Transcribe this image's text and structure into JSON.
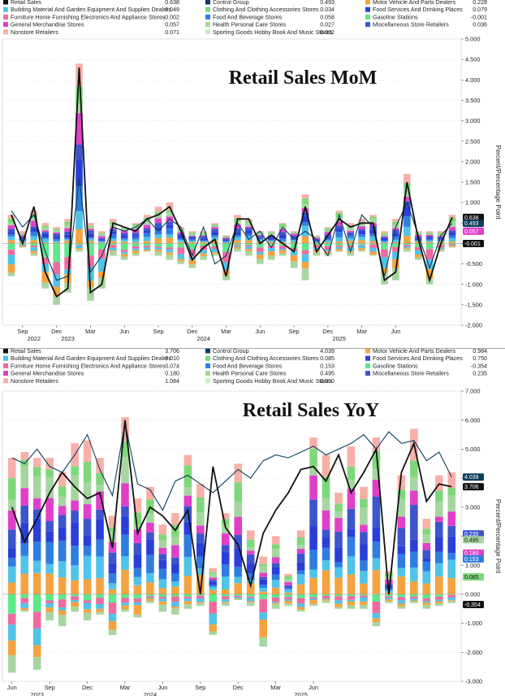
{
  "chart_data": [
    {
      "type": "bar",
      "title": "Retail Sales MoM",
      "ylabel": "Percent/Percentage Point",
      "ylim": [
        -2.0,
        5.0
      ],
      "yticks": [
        "5.000",
        "4.500",
        "4.000",
        "3.500",
        "3.000",
        "2.500",
        "2.000",
        "1.500",
        "1.000",
        "0.500",
        "0.000",
        "-0.500",
        "-1.000",
        "-1.500",
        "-2.000"
      ],
      "x_month_labels": [
        "Sep",
        "Dec",
        "Mar",
        "Jun",
        "Sep",
        "Dec",
        "Mar",
        "Jun",
        "Sep",
        "Dec",
        "Mar",
        "Jun"
      ],
      "x_year_labels": [
        "2022",
        "2023",
        "2024",
        "2025"
      ],
      "legend": [
        {
          "name": "Retail Sales",
          "value": "0.638",
          "color": "#111111"
        },
        {
          "name": "Control Group",
          "value": "0.493",
          "color": "#0b3d5c"
        },
        {
          "name": "Motor Vehicle And Parts Dealers",
          "value": "0.228",
          "color": "#f5a340"
        },
        {
          "name": "Building Material And Garden Equipment And Supplies Dealers",
          "value": "0.049",
          "color": "#4fc3e8"
        },
        {
          "name": "Clothing And Clothing Accessories Stores",
          "value": "0.034",
          "color": "#7ed87a"
        },
        {
          "name": "Food Services And Drinking Places",
          "value": "0.079",
          "color": "#2a3fd8"
        },
        {
          "name": "Furniture Home Furnishing Electronics And Appliance Stores",
          "value": "-0.002",
          "color": "#f06aa0"
        },
        {
          "name": "Food And Beverage Stores",
          "value": "0.058",
          "color": "#2f7de0"
        },
        {
          "name": "Gasoline Stations",
          "value": "-0.001",
          "color": "#5de88a"
        },
        {
          "name": "General Merchandise Stores",
          "value": "0.057",
          "color": "#e040c8"
        },
        {
          "name": "Health Personal Care Stores",
          "value": "0.027",
          "color": "#a6d6a0"
        },
        {
          "name": "Miscellaneous Store Retailers",
          "value": "0.036",
          "color": "#3d55cc"
        },
        {
          "name": "Nonstore Retailers",
          "value": "0.071",
          "color": "#f7b0a8"
        },
        {
          "name": "Sporting Goods Hobby Book And Music Stores",
          "value": "0.002",
          "color": "#c9eec0"
        }
      ],
      "retail_sales": [
        0.7,
        0.0,
        0.9,
        -0.7,
        -1.3,
        -1.1,
        4.3,
        -1.2,
        -1.0,
        0.5,
        0.4,
        0.3,
        0.6,
        0.7,
        0.9,
        0.3,
        -0.4,
        -0.1,
        0.1,
        -0.8,
        0.6,
        0.6,
        0.0,
        0.2,
        0.0,
        -0.2,
        0.9,
        -0.2,
        0.2,
        0.6,
        0.4,
        0.5,
        0.5,
        -0.9,
        -0.7,
        1.5,
        0.1,
        -0.9,
        0.0,
        0.638
      ],
      "control_group": [
        0.8,
        0.4,
        0.7,
        -0.2,
        -0.9,
        -0.8,
        1.6,
        -0.7,
        -0.3,
        0.4,
        0.3,
        0.4,
        0.6,
        0.3,
        0.6,
        0.4,
        -0.3,
        0.4,
        -0.5,
        -0.3,
        0.5,
        0.1,
        0.3,
        -0.1,
        0.4,
        0.1,
        0.3,
        0.1,
        -0.3,
        0.7,
        -0.2,
        0.7,
        0.4,
        -0.8,
        0.4,
        1.0,
        0.2,
        -0.6,
        0.2,
        0.493
      ],
      "yoy_positive_total": [
        4.7,
        4.9,
        4.7,
        4.7,
        4.2,
        5.2,
        5.3,
        4.7,
        2.7,
        6.1,
        3.3,
        3.7,
        2.4,
        2.8,
        4.8,
        3.8,
        0.9,
        2.8,
        4.5,
        2.2,
        1.3,
        2.0,
        0.7,
        2.2,
        5.4,
        4.8,
        3.5,
        5.1,
        3.7,
        5.4,
        0.8,
        4.1,
        5.7,
        2.6,
        4.1,
        4.2
      ],
      "yoy_negative_total": [
        -2.7,
        -0.6,
        -2.6,
        -0.9,
        -1.1,
        -0.6,
        -0.9,
        -0.7,
        -1.4,
        -0.6,
        -0.8,
        -0.3,
        -0.6,
        -0.7,
        -0.5,
        -0.4,
        -1.4,
        -0.4,
        -0.2,
        -0.4,
        -1.8,
        -0.5,
        -0.4,
        -0.6,
        -0.4,
        -0.3,
        -0.5,
        -0.5,
        -0.5,
        -1.1,
        -0.3,
        -0.5,
        -0.3,
        -0.5,
        -0.4,
        -0.3
      ]
    },
    {
      "type": "bar",
      "title": "Retail Sales YoY",
      "ylabel": "Percent/Percentage Point",
      "ylim": [
        -3.0,
        7.0
      ],
      "yticks": [
        "7.000",
        "6.000",
        "5.000",
        "4.000",
        "3.000",
        "2.000",
        "1.000",
        "0.000",
        "-1.000",
        "-2.000",
        "-3.000"
      ],
      "x_month_labels": [
        "Jun",
        "Sep",
        "Dec",
        "Mar",
        "Jun",
        "Sep",
        "Dec",
        "Mar",
        "Jun"
      ],
      "x_year_labels": [
        "2023",
        "2024",
        "2025"
      ],
      "legend": [
        {
          "name": "Retail Sales",
          "value": "3.706",
          "color": "#111111"
        },
        {
          "name": "Control Group",
          "value": "4.039",
          "color": "#0b3d5c"
        },
        {
          "name": "Motor Vehicle And Parts Dealers",
          "value": "0.984",
          "color": "#f5a340"
        },
        {
          "name": "Building Material And Garden Equipment And Supplies Dealers",
          "value": "0.010",
          "color": "#4fc3e8"
        },
        {
          "name": "Clothing And Clothing Accessories Stores",
          "value": "0.085",
          "color": "#7ed87a"
        },
        {
          "name": "Food Services And Drinking Places",
          "value": "0.750",
          "color": "#2a3fd8"
        },
        {
          "name": "Furniture Home Furnishing Electronics And Appliance Stores",
          "value": "0.074",
          "color": "#f06aa0"
        },
        {
          "name": "Food And Beverage Stores",
          "value": "0.153",
          "color": "#2f7de0"
        },
        {
          "name": "Gasoline Stations",
          "value": "-0.354",
          "color": "#5de88a"
        },
        {
          "name": "General Merchandise Stores",
          "value": "0.180",
          "color": "#e040c8"
        },
        {
          "name": "Health Personal Care Stores",
          "value": "0.495",
          "color": "#a6d6a0"
        },
        {
          "name": "Miscellaneous Store Retailers",
          "value": "0.235",
          "color": "#3d55cc"
        },
        {
          "name": "Nonstore Retailers",
          "value": "1.084",
          "color": "#f7b0a8"
        },
        {
          "name": "Sporting Goods Hobby Book And Music Stores",
          "value": "0.010",
          "color": "#c9eec0"
        }
      ],
      "retail_sales": [
        3.0,
        1.8,
        2.6,
        3.5,
        4.2,
        3.7,
        3.3,
        3.5,
        1.6,
        6.0,
        2.1,
        3.0,
        2.7,
        2.2,
        2.9,
        0.0,
        4.4,
        2.3,
        1.7,
        0.3,
        2.1,
        2.9,
        3.5,
        4.3,
        4.4,
        3.9,
        4.8,
        3.5,
        4.2,
        5.0,
        0.0,
        4.2,
        5.2,
        3.2,
        3.8,
        3.706
      ],
      "control_group": [
        4.7,
        4.5,
        5.0,
        4.4,
        4.2,
        4.8,
        5.5,
        4.3,
        3.4,
        5.9,
        3.8,
        3.6,
        2.9,
        3.9,
        4.1,
        3.8,
        3.5,
        3.9,
        4.3,
        4.0,
        4.6,
        4.8,
        4.7,
        4.9,
        5.1,
        4.8,
        5.0,
        5.2,
        5.5,
        5.0,
        5.6,
        5.2,
        5.3,
        4.6,
        4.9,
        4.039
      ],
      "positive_totals": [
        4.7,
        4.9,
        4.7,
        4.7,
        4.2,
        5.2,
        5.3,
        4.7,
        2.7,
        6.1,
        3.3,
        3.7,
        2.4,
        2.8,
        4.8,
        3.8,
        0.9,
        2.8,
        4.5,
        2.2,
        1.3,
        2.0,
        0.7,
        2.2,
        5.4,
        4.8,
        3.5,
        5.1,
        3.7,
        5.4,
        0.8,
        4.1,
        5.7,
        2.6,
        4.1,
        4.2
      ],
      "negative_totals": [
        -2.7,
        -0.6,
        -2.6,
        -0.9,
        -1.1,
        -0.6,
        -0.9,
        -0.7,
        -1.4,
        -0.6,
        -0.8,
        -0.3,
        -0.6,
        -0.7,
        -0.5,
        -0.4,
        -1.4,
        -0.4,
        -0.2,
        -0.4,
        -1.8,
        -0.5,
        -0.4,
        -0.6,
        -0.4,
        -0.3,
        -0.5,
        -0.5,
        -0.5,
        -1.1,
        -0.3,
        -0.5,
        -0.3,
        -0.5,
        -0.4,
        -0.3
      ],
      "end_tags": [
        {
          "value": "4.039",
          "y": 4.039,
          "color": "#0b3d5c"
        },
        {
          "value": "3.706",
          "y": 3.706,
          "color": "#111111"
        },
        {
          "value": "0.235",
          "y": 2.08,
          "color": "#3d55cc"
        },
        {
          "value": "0.495",
          "y": 1.88,
          "color": "#a6d6a0"
        },
        {
          "value": "0.180",
          "y": 1.42,
          "color": "#e040c8"
        },
        {
          "value": "0.153",
          "y": 1.22,
          "color": "#2f7de0"
        },
        {
          "value": "0.085",
          "y": 0.6,
          "color": "#7ed87a"
        },
        {
          "value": "-0.354",
          "y": -0.354,
          "color": "#111111"
        }
      ]
    }
  ],
  "mom_end_tags": [
    {
      "value": "0.638",
      "y": 0.638,
      "color": "#111111"
    },
    {
      "value": "0.493",
      "y": 0.493,
      "color": "#0b3d5c"
    },
    {
      "value": "0.057",
      "y": 0.3,
      "color": "#e040c8"
    },
    {
      "value": "-0.001",
      "y": -0.001,
      "color": "#111111"
    }
  ]
}
